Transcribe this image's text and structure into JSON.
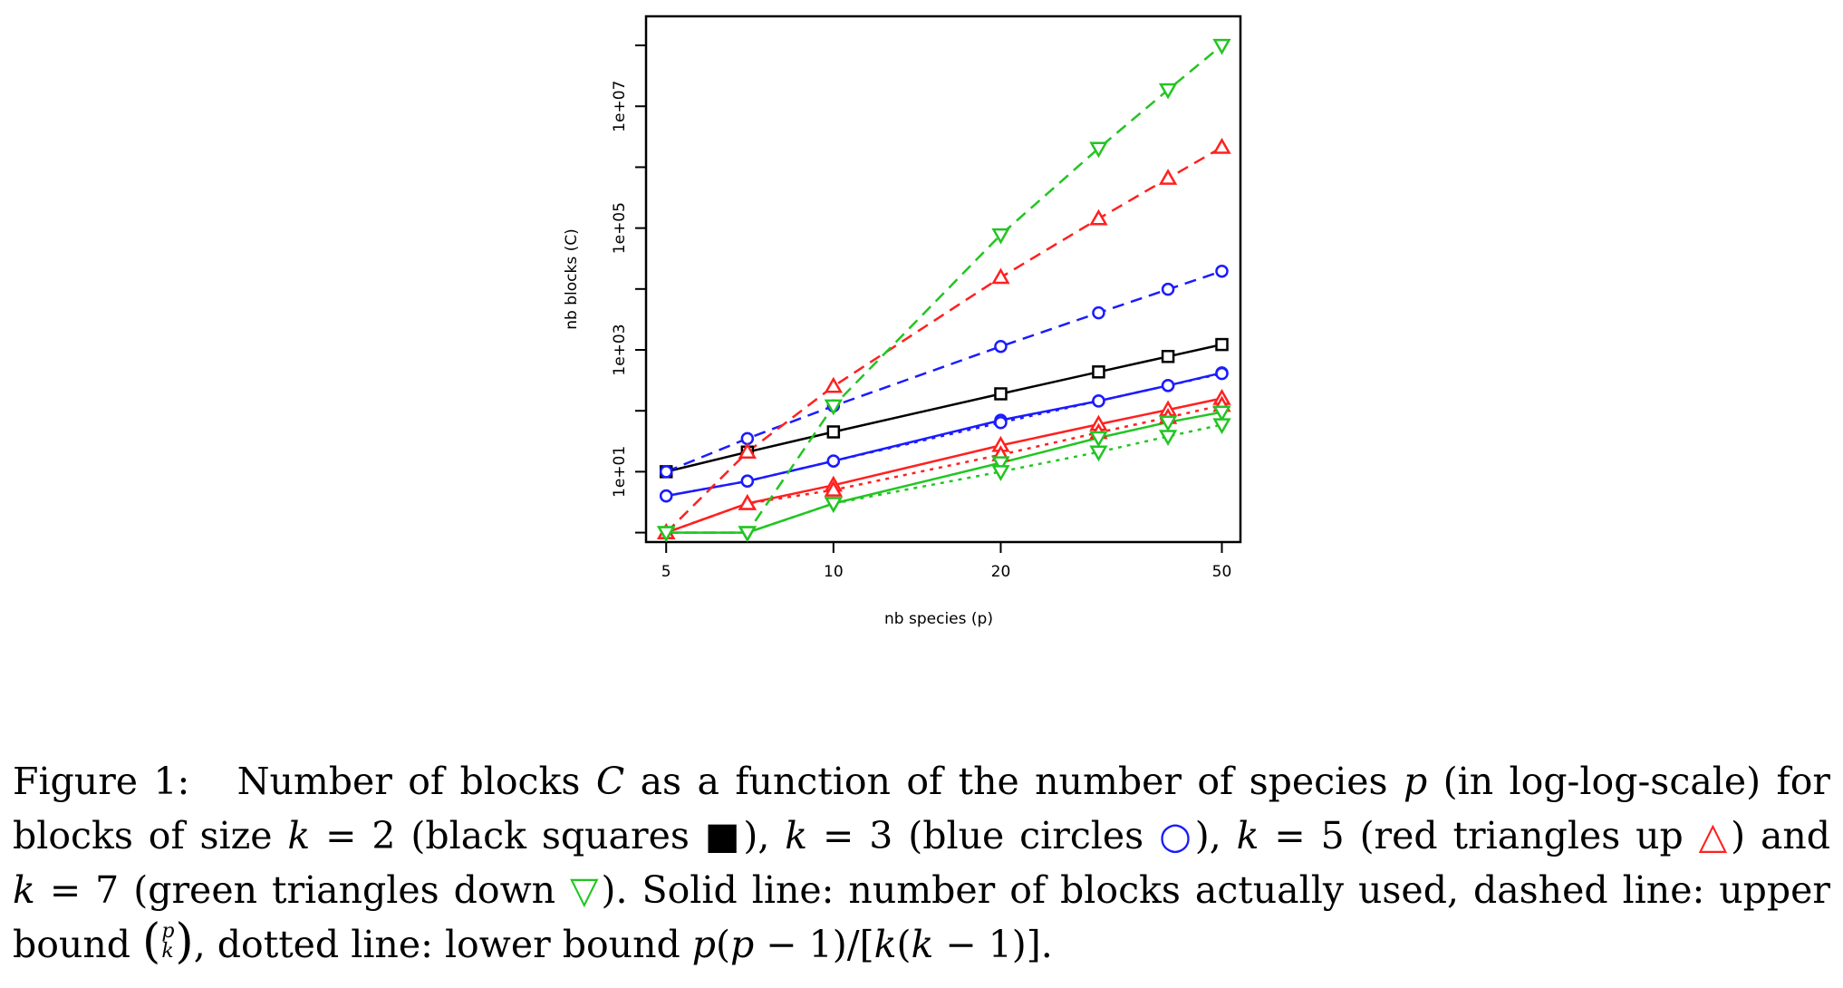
{
  "chart_data": {
    "type": "line",
    "title": "",
    "xlabel": "nb species (p)",
    "ylabel": "nb blocks (C)",
    "xscale": "log",
    "yscale": "log",
    "xlim": [
      4.6,
      54
    ],
    "ylim": [
      0.7,
      300000000
    ],
    "x_ticks": [
      5,
      10,
      20,
      50
    ],
    "x_tick_labels": [
      "5",
      "10",
      "20",
      "50"
    ],
    "y_ticks": [
      10,
      1000,
      100000,
      10000000
    ],
    "y_tick_labels": [
      "1e+01",
      "1e+03",
      "1e+05",
      "1e+07"
    ],
    "y_minor_ticks": [
      1,
      100,
      10000,
      1000000,
      100000000
    ],
    "grid": false,
    "legend": "none",
    "x": [
      5,
      7,
      10,
      20,
      30,
      40,
      50
    ],
    "series": [
      {
        "k": 2,
        "line": "solid",
        "marker": "square",
        "color": "#000000",
        "values": [
          10,
          21,
          45,
          190,
          435,
          780,
          1225
        ]
      },
      {
        "k": 3,
        "line": "dashed",
        "marker": "circle",
        "color": "#1b1bff",
        "values": [
          10,
          35,
          120,
          1140,
          4060,
          9880,
          19600
        ]
      },
      {
        "k": 3,
        "line": "solid",
        "marker": "circle",
        "color": "#1b1bff",
        "values": [
          4,
          7,
          15,
          70,
          145,
          260,
          420
        ]
      },
      {
        "k": 3,
        "line": "dotted",
        "marker": "circle",
        "color": "#1b1bff",
        "values": [
          4,
          7,
          15,
          64,
          145,
          260,
          409
        ]
      },
      {
        "k": 5,
        "line": "dashed",
        "marker": "triangle-up",
        "color": "#ff2020",
        "values": [
          1,
          21,
          252,
          15504,
          142506,
          658008,
          2118760
        ]
      },
      {
        "k": 5,
        "line": "solid",
        "marker": "triangle-up",
        "color": "#ff2020",
        "values": [
          1,
          3,
          6,
          27,
          60,
          104,
          160
        ]
      },
      {
        "k": 5,
        "line": "dotted",
        "marker": "triangle-up",
        "color": "#ff2020",
        "values": [
          1,
          3,
          5,
          19,
          44,
          78,
          123
        ]
      },
      {
        "k": 7,
        "line": "dashed",
        "marker": "triangle-down",
        "color": "#22c522",
        "values": [
          1,
          1,
          120,
          77520,
          2035800,
          18643560,
          99884400
        ]
      },
      {
        "k": 7,
        "line": "solid",
        "marker": "triangle-down",
        "color": "#22c522",
        "values": [
          1,
          1,
          3,
          14,
          36,
          65,
          95
        ]
      },
      {
        "k": 7,
        "line": "dotted",
        "marker": "triangle-down",
        "color": "#22c522",
        "values": [
          1,
          1,
          3,
          10,
          21,
          38,
          59
        ]
      }
    ]
  },
  "caption": {
    "label": "Figure 1:",
    "line1": "Number of blocks C as a function of the number of species p (in log-log-scale) for",
    "line2": "blocks of size k = 2 (black squares ■), k = 3 (blue circles ○), k = 5 (red triangles up △) and",
    "line3": "k = 7 (green triangles down ▽). Solid line: number of blocks actually used, dashed line: upper",
    "line4": "bound (p k), dotted line: lower bound p(p − 1)/[k(k − 1)].",
    "sym_square": "■",
    "sym_circle": "○",
    "sym_tri_up": "△",
    "sym_tri_down": "▽",
    "binom_top": "p",
    "binom_bottom": "k"
  }
}
